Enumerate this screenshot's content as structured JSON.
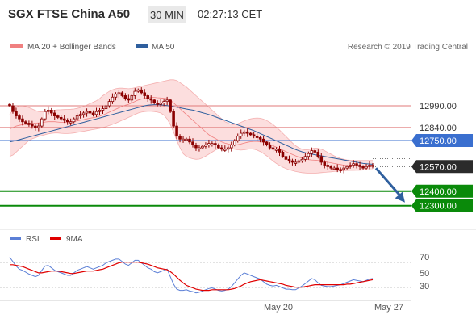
{
  "header": {
    "title": "SGX FTSE China A50",
    "timeframe": "30 MIN",
    "time": "02:27:13 CET"
  },
  "main_chart": {
    "legend": [
      {
        "label": "MA 20 + Bollinger Bands",
        "color": "#f08080"
      },
      {
        "label": "MA 50",
        "color": "#2f5f9e"
      }
    ],
    "credit": "Research © 2019 Trading Central",
    "y_range": [
      12170,
      13230
    ],
    "levels": [
      {
        "value": 12990,
        "label": "12990.00",
        "style": "red-line",
        "color": "#e07a7a"
      },
      {
        "value": 12840,
        "label": "12840.00",
        "style": "red-line",
        "color": "#e07a7a"
      },
      {
        "value": 12750,
        "label": "12750.00",
        "style": "blue-tag",
        "color": "#3a6fcf"
      },
      {
        "value": 12570,
        "label": "12570.00",
        "style": "dark-tag",
        "color": "#2b2b2b"
      },
      {
        "value": 12400,
        "label": "12400.00",
        "style": "green-tag",
        "color": "#0a8a0a"
      },
      {
        "value": 12300,
        "label": "12300.00",
        "style": "green-tag",
        "color": "#0a8a0a"
      }
    ],
    "arrow": {
      "from": 12570,
      "to": 12300,
      "color": "#2f5f9e"
    },
    "candle_color": "#8b0000"
  },
  "chart_data": [
    {
      "type": "candlestick",
      "x_tick_labels": [
        "May 20",
        "May 27"
      ],
      "close": [
        12990,
        12950,
        12920,
        12900,
        12880,
        12870,
        12860,
        12850,
        12840,
        12850,
        12900,
        12950,
        12960,
        12940,
        12920,
        12910,
        12900,
        12890,
        12880,
        12880,
        12900,
        12920,
        12930,
        12940,
        12950,
        12940,
        12930,
        12950,
        12960,
        12970,
        12990,
        13020,
        13050,
        13070,
        13080,
        13060,
        13040,
        13030,
        13060,
        13090,
        13100,
        13080,
        13060,
        13040,
        13030,
        13010,
        13000,
        13010,
        13020,
        13030,
        12950,
        12850,
        12780,
        12760,
        12760,
        12760,
        12740,
        12720,
        12700,
        12700,
        12710,
        12720,
        12730,
        12730,
        12720,
        12700,
        12690,
        12690,
        12700,
        12720,
        12750,
        12780,
        12800,
        12810,
        12800,
        12790,
        12780,
        12770,
        12760,
        12740,
        12720,
        12700,
        12690,
        12690,
        12670,
        12640,
        12620,
        12610,
        12600,
        12600,
        12610,
        12620,
        12640,
        12660,
        12680,
        12670,
        12640,
        12600,
        12580,
        12570,
        12560,
        12560,
        12550,
        12550,
        12560,
        12570,
        12580,
        12590,
        12580,
        12570,
        12560,
        12570,
        12580,
        12580
      ],
      "ma20": [
        12830,
        12840,
        12850,
        12855,
        12860,
        12862,
        12865,
        12868,
        12870,
        12872,
        12875,
        12878,
        12880,
        12880,
        12880,
        12878,
        12876,
        12876,
        12878,
        12880,
        12882,
        12886,
        12890,
        12894,
        12900,
        12904,
        12908,
        12912,
        12918,
        12926,
        12936,
        12946,
        12956,
        12966,
        12976,
        12986,
        12994,
        13000,
        13010,
        13020,
        13030,
        13036,
        13042,
        13046,
        13048,
        13048,
        13046,
        13044,
        13042,
        13040,
        13030,
        13010,
        12990,
        12970,
        12950,
        12930,
        12910,
        12890,
        12870,
        12850,
        12830,
        12810,
        12790,
        12776,
        12764,
        12752,
        12740,
        12732,
        12726,
        12722,
        12720,
        12722,
        12726,
        12732,
        12738,
        12742,
        12744,
        12744,
        12742,
        12738,
        12732,
        12724,
        12714,
        12704,
        12694,
        12684,
        12674,
        12664,
        12654,
        12644,
        12636,
        12628,
        12622,
        12618,
        12616,
        12614,
        12612,
        12608,
        12604,
        12600,
        12596,
        12592,
        12588,
        12584,
        12580,
        12578,
        12576,
        12575,
        12574,
        12573,
        12572,
        12572,
        12572,
        12572
      ],
      "bb_upper": [
        12930,
        12960,
        12980,
        12990,
        12990,
        12985,
        12978,
        12968,
        12958,
        12950,
        12948,
        12950,
        12955,
        12958,
        12960,
        12962,
        12963,
        12964,
        12965,
        12966,
        12968,
        12972,
        12978,
        12986,
        12995,
        13005,
        13015,
        13025,
        13040,
        13060,
        13075,
        13090,
        13100,
        13108,
        13112,
        13112,
        13110,
        13108,
        13110,
        13115,
        13120,
        13125,
        13130,
        13135,
        13140,
        13145,
        13150,
        13155,
        13160,
        13165,
        13170,
        13170,
        13165,
        13150,
        13135,
        13120,
        13100,
        13080,
        13060,
        13040,
        13020,
        13000,
        12980,
        12960,
        12940,
        12920,
        12900,
        12880,
        12870,
        12862,
        12860,
        12866,
        12876,
        12886,
        12894,
        12900,
        12904,
        12906,
        12904,
        12898,
        12888,
        12876,
        12860,
        12842,
        12822,
        12800,
        12778,
        12756,
        12734,
        12714,
        12700,
        12690,
        12686,
        12688,
        12694,
        12698,
        12696,
        12690,
        12680,
        12668,
        12656,
        12644,
        12634,
        12626,
        12620,
        12616,
        12614,
        12612,
        12612,
        12612,
        12612,
        12612,
        12612,
        12612
      ],
      "bb_lower": [
        12640,
        12650,
        12670,
        12690,
        12710,
        12730,
        12750,
        12762,
        12770,
        12778,
        12784,
        12790,
        12796,
        12800,
        12802,
        12802,
        12800,
        12798,
        12798,
        12800,
        12802,
        12806,
        12810,
        12814,
        12818,
        12822,
        12826,
        12830,
        12834,
        12840,
        12846,
        12854,
        12862,
        12870,
        12880,
        12890,
        12900,
        12910,
        12920,
        12930,
        12940,
        12946,
        12950,
        12952,
        12952,
        12950,
        12946,
        12940,
        12926,
        12900,
        12860,
        12810,
        12750,
        12700,
        12660,
        12640,
        12630,
        12624,
        12620,
        12622,
        12630,
        12642,
        12656,
        12670,
        12684,
        12694,
        12698,
        12700,
        12698,
        12694,
        12690,
        12686,
        12684,
        12686,
        12690,
        12692,
        12690,
        12684,
        12674,
        12660,
        12644,
        12626,
        12608,
        12592,
        12578,
        12566,
        12556,
        12548,
        12542,
        12536,
        12532,
        12528,
        12526,
        12524,
        12524,
        12524,
        12526,
        12528,
        12530,
        12532,
        12534,
        12536,
        12538,
        12540,
        12542,
        12543,
        12544,
        12544,
        12545,
        12545,
        12546,
        12546,
        12546,
        12546
      ],
      "ma50": [
        12740,
        12745,
        12750,
        12756,
        12762,
        12768,
        12774,
        12780,
        12786,
        12792,
        12798,
        12804,
        12810,
        12816,
        12822,
        12828,
        12834,
        12840,
        12846,
        12852,
        12858,
        12864,
        12870,
        12876,
        12882,
        12888,
        12894,
        12900,
        12906,
        12912,
        12918,
        12924,
        12930,
        12936,
        12942,
        12948,
        12954,
        12960,
        12966,
        12972,
        12978,
        12984,
        12990,
        12994,
        12996,
        12998,
        12998,
        12996,
        12994,
        12992,
        12988,
        12984,
        12980,
        12976,
        12972,
        12968,
        12964,
        12960,
        12954,
        12948,
        12942,
        12936,
        12930,
        12922,
        12914,
        12906,
        12898,
        12890,
        12882,
        12874,
        12866,
        12858,
        12850,
        12842,
        12834,
        12826,
        12818,
        12808,
        12798,
        12788,
        12778,
        12768,
        12758,
        12748,
        12738,
        12728,
        12718,
        12708,
        12698,
        12688,
        12680,
        12672,
        12666,
        12660,
        12656,
        12652,
        12648,
        12644,
        12640,
        12636,
        12632,
        12628,
        12624,
        12620,
        12616,
        12612,
        12608,
        12604,
        12600,
        12596,
        12592,
        12590,
        12588,
        12586
      ],
      "rsi_range": [
        10,
        90
      ],
      "rsi_ticks": [
        "70",
        "50",
        "30"
      ],
      "rsi": [
        79,
        72,
        65,
        60,
        58,
        55,
        52,
        50,
        48,
        50,
        58,
        65,
        66,
        62,
        58,
        56,
        54,
        52,
        50,
        50,
        54,
        58,
        60,
        62,
        64,
        62,
        60,
        62,
        64,
        66,
        70,
        72,
        74,
        76,
        76,
        72,
        68,
        66,
        70,
        74,
        74,
        70,
        66,
        62,
        60,
        56,
        54,
        56,
        58,
        60,
        48,
        36,
        28,
        26,
        26,
        27,
        25,
        24,
        22,
        23,
        25,
        27,
        29,
        30,
        28,
        26,
        25,
        26,
        28,
        32,
        38,
        44,
        50,
        54,
        52,
        50,
        48,
        46,
        44,
        40,
        36,
        34,
        33,
        34,
        32,
        30,
        28,
        28,
        27,
        27,
        30,
        33,
        37,
        41,
        45,
        43,
        38,
        34,
        33,
        32,
        32,
        33,
        34,
        35,
        37,
        39,
        41,
        43,
        42,
        41,
        40,
        42,
        44,
        45
      ],
      "rsi_ma": [
        67,
        67,
        66,
        65,
        64,
        62,
        60,
        58,
        56,
        54,
        54,
        55,
        56,
        57,
        57,
        57,
        56,
        55,
        54,
        53,
        53,
        54,
        55,
        56,
        57,
        57,
        57,
        58,
        59,
        60,
        62,
        64,
        66,
        68,
        70,
        71,
        71,
        71,
        71,
        71,
        71,
        70,
        69,
        68,
        66,
        64,
        62,
        61,
        60,
        59,
        56,
        52,
        47,
        42,
        38,
        34,
        32,
        30,
        28,
        27,
        26,
        26,
        26,
        27,
        27,
        27,
        27,
        27,
        27,
        28,
        29,
        31,
        33,
        36,
        38,
        40,
        41,
        42,
        43,
        42,
        41,
        40,
        39,
        38,
        37,
        36,
        34,
        33,
        32,
        31,
        31,
        31,
        32,
        33,
        34,
        35,
        35,
        35,
        35,
        35,
        35,
        35,
        35,
        35,
        35,
        36,
        36,
        37,
        38,
        39,
        40,
        41,
        42,
        43
      ]
    }
  ],
  "rsi_legend": [
    {
      "label": "RSI",
      "color": "#5b7fd6"
    },
    {
      "label": "9MA",
      "color": "#e00000"
    }
  ]
}
